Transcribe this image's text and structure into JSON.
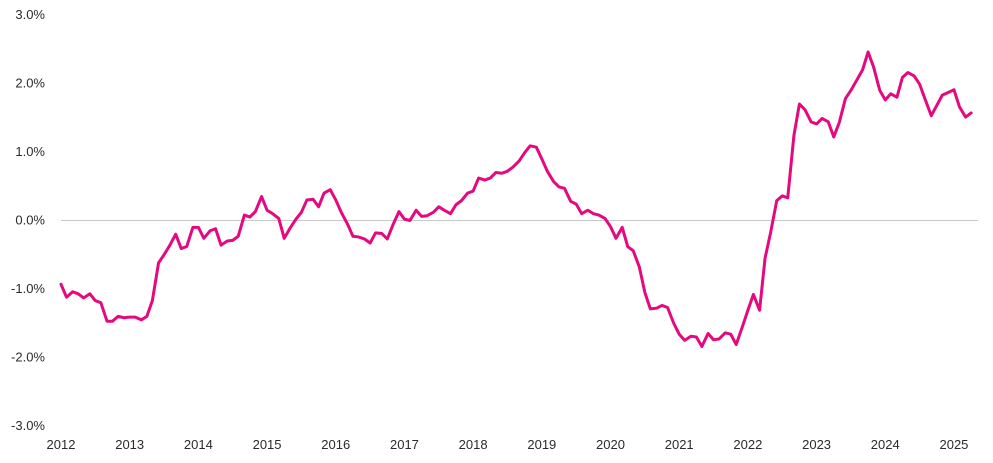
{
  "chart_data": {
    "type": "line",
    "title": "",
    "xlabel": "",
    "ylabel": "",
    "xlim": [
      2012.0,
      2025.35
    ],
    "ylim": [
      -3.0,
      3.0
    ],
    "grid": "zero-line only",
    "legend": "none",
    "x_ticks": [
      {
        "value": 2012,
        "label": "2012"
      },
      {
        "value": 2013,
        "label": "2013"
      },
      {
        "value": 2014,
        "label": "2014"
      },
      {
        "value": 2015,
        "label": "2015"
      },
      {
        "value": 2016,
        "label": "2016"
      },
      {
        "value": 2017,
        "label": "2017"
      },
      {
        "value": 2018,
        "label": "2018"
      },
      {
        "value": 2019,
        "label": "2019"
      },
      {
        "value": 2020,
        "label": "2020"
      },
      {
        "value": 2021,
        "label": "2021"
      },
      {
        "value": 2022,
        "label": "2022"
      },
      {
        "value": 2023,
        "label": "2023"
      },
      {
        "value": 2024,
        "label": "2024"
      },
      {
        "value": 2025,
        "label": "2025"
      }
    ],
    "y_ticks": [
      {
        "value": 3.0,
        "label": "3.0%"
      },
      {
        "value": 2.0,
        "label": "2.0%"
      },
      {
        "value": 1.0,
        "label": "1.0%"
      },
      {
        "value": 0.0,
        "label": "0.0%"
      },
      {
        "value": -1.0,
        "label": "-1.0%"
      },
      {
        "value": -2.0,
        "label": "-2.0%"
      },
      {
        "value": -3.0,
        "label": "-3.0%"
      }
    ],
    "series": [
      {
        "color": "#e5097f",
        "points": [
          [
            2012.0,
            -0.93
          ],
          [
            2012.08,
            -1.12
          ],
          [
            2012.17,
            -1.04
          ],
          [
            2012.25,
            -1.07
          ],
          [
            2012.33,
            -1.13
          ],
          [
            2012.42,
            -1.07
          ],
          [
            2012.5,
            -1.17
          ],
          [
            2012.58,
            -1.2
          ],
          [
            2012.67,
            -1.47
          ],
          [
            2012.75,
            -1.47
          ],
          [
            2012.83,
            -1.4
          ],
          [
            2012.92,
            -1.42
          ],
          [
            2013.0,
            -1.41
          ],
          [
            2013.08,
            -1.41
          ],
          [
            2013.17,
            -1.45
          ],
          [
            2013.25,
            -1.4
          ],
          [
            2013.33,
            -1.17
          ],
          [
            2013.42,
            -0.62
          ],
          [
            2013.5,
            -0.5
          ],
          [
            2013.58,
            -0.37
          ],
          [
            2013.67,
            -0.2
          ],
          [
            2013.75,
            -0.41
          ],
          [
            2013.83,
            -0.38
          ],
          [
            2013.92,
            -0.1
          ],
          [
            2014.0,
            -0.1
          ],
          [
            2014.08,
            -0.26
          ],
          [
            2014.17,
            -0.15
          ],
          [
            2014.25,
            -0.12
          ],
          [
            2014.33,
            -0.36
          ],
          [
            2014.42,
            -0.3
          ],
          [
            2014.5,
            -0.29
          ],
          [
            2014.58,
            -0.23
          ],
          [
            2014.67,
            0.08
          ],
          [
            2014.75,
            0.05
          ],
          [
            2014.83,
            0.13
          ],
          [
            2014.92,
            0.35
          ],
          [
            2015.0,
            0.15
          ],
          [
            2015.08,
            0.1
          ],
          [
            2015.17,
            0.03
          ],
          [
            2015.25,
            -0.26
          ],
          [
            2015.33,
            -0.12
          ],
          [
            2015.42,
            0.02
          ],
          [
            2015.5,
            0.12
          ],
          [
            2015.58,
            0.3
          ],
          [
            2015.67,
            0.31
          ],
          [
            2015.75,
            0.2
          ],
          [
            2015.83,
            0.4
          ],
          [
            2015.92,
            0.45
          ],
          [
            2016.0,
            0.3
          ],
          [
            2016.08,
            0.12
          ],
          [
            2016.17,
            -0.05
          ],
          [
            2016.25,
            -0.23
          ],
          [
            2016.33,
            -0.24
          ],
          [
            2016.42,
            -0.27
          ],
          [
            2016.5,
            -0.33
          ],
          [
            2016.58,
            -0.18
          ],
          [
            2016.67,
            -0.19
          ],
          [
            2016.75,
            -0.27
          ],
          [
            2016.83,
            -0.07
          ],
          [
            2016.92,
            0.13
          ],
          [
            2017.0,
            0.02
          ],
          [
            2017.08,
            0.0
          ],
          [
            2017.17,
            0.15
          ],
          [
            2017.25,
            0.06
          ],
          [
            2017.33,
            0.07
          ],
          [
            2017.42,
            0.12
          ],
          [
            2017.5,
            0.2
          ],
          [
            2017.58,
            0.15
          ],
          [
            2017.67,
            0.1
          ],
          [
            2017.75,
            0.23
          ],
          [
            2017.83,
            0.29
          ],
          [
            2017.92,
            0.4
          ],
          [
            2018.0,
            0.43
          ],
          [
            2018.08,
            0.62
          ],
          [
            2018.17,
            0.59
          ],
          [
            2018.25,
            0.62
          ],
          [
            2018.33,
            0.7
          ],
          [
            2018.42,
            0.69
          ],
          [
            2018.5,
            0.72
          ],
          [
            2018.58,
            0.78
          ],
          [
            2018.67,
            0.87
          ],
          [
            2018.75,
            0.99
          ],
          [
            2018.83,
            1.09
          ],
          [
            2018.92,
            1.07
          ],
          [
            2019.0,
            0.9
          ],
          [
            2019.08,
            0.72
          ],
          [
            2019.17,
            0.57
          ],
          [
            2019.25,
            0.49
          ],
          [
            2019.33,
            0.47
          ],
          [
            2019.42,
            0.28
          ],
          [
            2019.5,
            0.24
          ],
          [
            2019.58,
            0.1
          ],
          [
            2019.67,
            0.15
          ],
          [
            2019.75,
            0.1
          ],
          [
            2019.83,
            0.08
          ],
          [
            2019.92,
            0.03
          ],
          [
            2020.0,
            -0.09
          ],
          [
            2020.08,
            -0.26
          ],
          [
            2020.17,
            -0.1
          ],
          [
            2020.25,
            -0.38
          ],
          [
            2020.33,
            -0.44
          ],
          [
            2020.42,
            -0.68
          ],
          [
            2020.5,
            -1.05
          ],
          [
            2020.58,
            -1.29
          ],
          [
            2020.67,
            -1.28
          ],
          [
            2020.75,
            -1.24
          ],
          [
            2020.83,
            -1.27
          ],
          [
            2020.92,
            -1.5
          ],
          [
            2021.0,
            -1.66
          ],
          [
            2021.08,
            -1.75
          ],
          [
            2021.17,
            -1.69
          ],
          [
            2021.25,
            -1.7
          ],
          [
            2021.33,
            -1.84
          ],
          [
            2021.42,
            -1.65
          ],
          [
            2021.5,
            -1.74
          ],
          [
            2021.58,
            -1.73
          ],
          [
            2021.67,
            -1.64
          ],
          [
            2021.75,
            -1.66
          ],
          [
            2021.83,
            -1.81
          ],
          [
            2021.92,
            -1.55
          ],
          [
            2022.0,
            -1.31
          ],
          [
            2022.08,
            -1.08
          ],
          [
            2022.17,
            -1.31
          ],
          [
            2022.25,
            -0.55
          ],
          [
            2022.33,
            -0.18
          ],
          [
            2022.42,
            0.29
          ],
          [
            2022.5,
            0.36
          ],
          [
            2022.58,
            0.33
          ],
          [
            2022.67,
            1.24
          ],
          [
            2022.75,
            1.7
          ],
          [
            2022.83,
            1.62
          ],
          [
            2022.92,
            1.44
          ],
          [
            2023.0,
            1.41
          ],
          [
            2023.08,
            1.49
          ],
          [
            2023.17,
            1.44
          ],
          [
            2023.25,
            1.22
          ],
          [
            2023.33,
            1.43
          ],
          [
            2023.42,
            1.78
          ],
          [
            2023.5,
            1.9
          ],
          [
            2023.58,
            2.04
          ],
          [
            2023.67,
            2.2
          ],
          [
            2023.75,
            2.46
          ],
          [
            2023.83,
            2.24
          ],
          [
            2023.92,
            1.9
          ],
          [
            2024.0,
            1.76
          ],
          [
            2024.08,
            1.85
          ],
          [
            2024.17,
            1.8
          ],
          [
            2024.25,
            2.09
          ],
          [
            2024.33,
            2.16
          ],
          [
            2024.42,
            2.11
          ],
          [
            2024.5,
            1.99
          ],
          [
            2024.58,
            1.77
          ],
          [
            2024.67,
            1.53
          ],
          [
            2024.75,
            1.68
          ],
          [
            2024.83,
            1.83
          ],
          [
            2024.92,
            1.87
          ],
          [
            2025.0,
            1.91
          ],
          [
            2025.08,
            1.66
          ],
          [
            2025.17,
            1.51
          ],
          [
            2025.25,
            1.57
          ]
        ]
      }
    ]
  }
}
